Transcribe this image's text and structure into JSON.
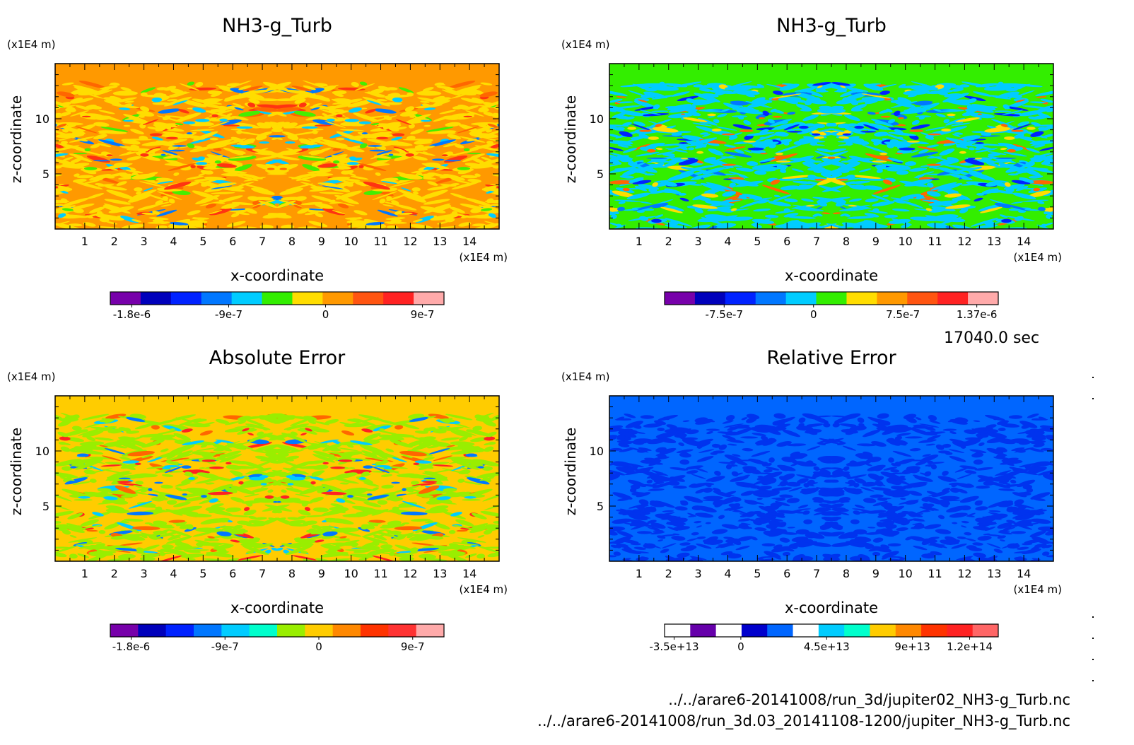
{
  "chart_data": [
    {
      "type": "heatmap",
      "title": "NH3-g_Turb",
      "xlabel": "x-coordinate",
      "ylabel": "z-coordinate",
      "x_unit": "(x1E4 m)",
      "y_unit": "(x1E4 m)",
      "xlim": [
        0,
        15
      ],
      "ylim": [
        0,
        15
      ],
      "x_ticks": [
        "1",
        "2",
        "3",
        "4",
        "5",
        "6",
        "7",
        "8",
        "9",
        "10",
        "11",
        "12",
        "13",
        "14"
      ],
      "y_ticks": [
        "5",
        "10"
      ],
      "background_color": "#ff9900",
      "pattern_colors": [
        "#ffdd00",
        "#ff6600",
        "#44ee00",
        "#0077ff",
        "#00ccff",
        "#ff3311"
      ],
      "colorbar": {
        "colors": [
          "#7700aa",
          "#0000bb",
          "#0022ff",
          "#0077ff",
          "#00ccff",
          "#33ee00",
          "#ffdd00",
          "#ff9900",
          "#ff5511",
          "#ff2222",
          "#ffaaaa"
        ],
        "tick_labels": [
          "-1.8e-6",
          "-9e-7",
          "0",
          "9e-7"
        ],
        "tick_values": [
          -1.8e-06,
          -9e-07,
          0,
          9e-07
        ],
        "range": [
          -2e-06,
          1.1e-06
        ]
      }
    },
    {
      "type": "heatmap",
      "title": "NH3-g_Turb",
      "xlabel": "x-coordinate",
      "ylabel": "z-coordinate",
      "x_unit": "(x1E4 m)",
      "y_unit": "(x1E4 m)",
      "xlim": [
        0,
        15
      ],
      "ylim": [
        0,
        15
      ],
      "x_ticks": [
        "1",
        "2",
        "3",
        "4",
        "5",
        "6",
        "7",
        "8",
        "9",
        "10",
        "11",
        "12",
        "13",
        "14"
      ],
      "y_ticks": [
        "5",
        "10"
      ],
      "background_color": "#33ee00",
      "pattern_colors": [
        "#00ccff",
        "#0077ff",
        "#ffdd00",
        "#ff6600",
        "#0022ff"
      ],
      "colorbar": {
        "colors": [
          "#7700aa",
          "#0000bb",
          "#0022ff",
          "#0077ff",
          "#00ccff",
          "#33ee00",
          "#ffdd00",
          "#ff9900",
          "#ff5511",
          "#ff2222",
          "#ffaaaa"
        ],
        "tick_labels": [
          "-7.5e-7",
          "0",
          "7.5e-7",
          "1.37e-6"
        ],
        "tick_values": [
          -7.5e-07,
          0,
          7.5e-07,
          1.37e-06
        ],
        "range": [
          -1.25e-06,
          1.55e-06
        ]
      }
    },
    {
      "type": "heatmap",
      "title": "Absolute Error",
      "xlabel": "x-coordinate",
      "ylabel": "z-coordinate",
      "x_unit": "(x1E4 m)",
      "y_unit": "(x1E4 m)",
      "xlim": [
        0,
        15
      ],
      "ylim": [
        0,
        15
      ],
      "x_ticks": [
        "1",
        "2",
        "3",
        "4",
        "5",
        "6",
        "7",
        "8",
        "9",
        "10",
        "11",
        "12",
        "13",
        "14"
      ],
      "y_ticks": [
        "5",
        "10"
      ],
      "background_color": "#ffcc00",
      "pattern_colors": [
        "#99ee00",
        "#ff6600",
        "#00ccff",
        "#0077ff",
        "#ff2222"
      ],
      "colorbar": {
        "colors": [
          "#7700aa",
          "#0000bb",
          "#0022ff",
          "#0077ff",
          "#00ccff",
          "#00ffcc",
          "#99ee00",
          "#ffcc00",
          "#ff8800",
          "#ff3300",
          "#ff3333",
          "#ffaaaa"
        ],
        "tick_labels": [
          "-1.8e-6",
          "-9e-7",
          "0",
          "9e-7"
        ],
        "tick_values": [
          -1.8e-06,
          -9e-07,
          0,
          9e-07
        ],
        "range": [
          -2e-06,
          1.2e-06
        ]
      }
    },
    {
      "type": "heatmap",
      "title": "Relative Error",
      "xlabel": "x-coordinate",
      "ylabel": "z-coordinate",
      "x_unit": "(x1E4 m)",
      "y_unit": "(x1E4 m)",
      "xlim": [
        0,
        15
      ],
      "ylim": [
        0,
        15
      ],
      "x_ticks": [
        "1",
        "2",
        "3",
        "4",
        "5",
        "6",
        "7",
        "8",
        "9",
        "10",
        "11",
        "12",
        "13",
        "14"
      ],
      "y_ticks": [
        "5",
        "10"
      ],
      "background_color": "#0066ff",
      "pattern_colors": [
        "#0033ee"
      ],
      "colorbar": {
        "colors": [
          "#ffffff",
          "#6600aa",
          "#ffffff",
          "#0000cc",
          "#0066ff",
          "#ffffff",
          "#00ccff",
          "#00ffcc",
          "#ffcc00",
          "#ff8800",
          "#ff3300",
          "#ff2222",
          "#ff6666"
        ],
        "tick_labels": [
          "-3.5e+13",
          "0",
          "4.5e+13",
          "9e+13",
          "1.2e+14"
        ],
        "tick_values": [
          -35000000000000.0,
          0,
          45000000000000.0,
          90000000000000.0,
          120000000000000.0
        ],
        "range": [
          -40000000000000.0,
          135000000000000.0
        ]
      }
    }
  ],
  "time_label": "17040.0 sec",
  "footer": [
    "../../arare6-20141008/run_3d/jupiter02_NH3-g_Turb.nc",
    "../../arare6-20141008/run_3d.03_20141108-1200/jupiter_NH3-g_Turb.nc"
  ]
}
